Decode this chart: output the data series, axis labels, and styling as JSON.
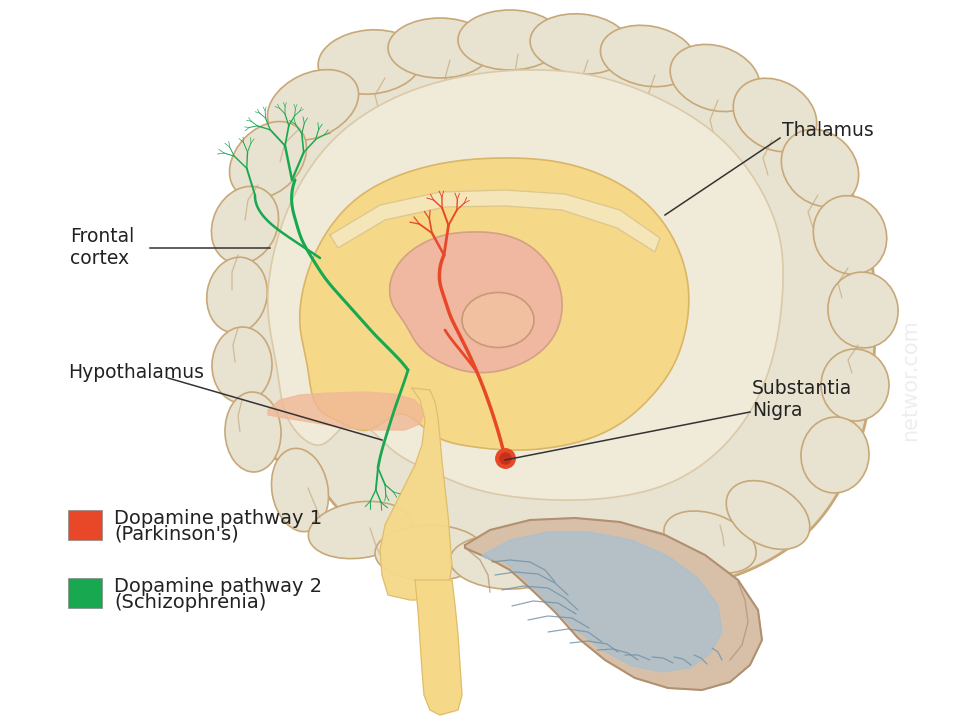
{
  "background_color": "#ffffff",
  "fig_width": 9.68,
  "fig_height": 7.26,
  "dpi": 100,
  "cortex_outer_color": "#e8e2d0",
  "cortex_stroke": "#c8a878",
  "cortex_inner_color": "#f0e8c8",
  "inner_yellow": "#f5d888",
  "midbrain_pink": "#f0b8a0",
  "midbrain_pink2": "#e8a090",
  "brainstem_color": "#f5d888",
  "cerebellum_outer": "#d8c8b0",
  "cerebellum_tan": "#c8a888",
  "cerebellum_blue": "#a8c0d0",
  "pons_color": "#f5d888",
  "pink_strip_color": "#f0b8a0",
  "pathway1_color": "#e84828",
  "pathway2_color": "#18a850",
  "label_frontal_cortex": "Frontal\ncortex",
  "label_thalamus": "Thalamus",
  "label_hypothalamus": "Hypothalamus",
  "label_substantia_nigra": "Substantia\nNigra",
  "legend_color1": "#e84828",
  "legend_color2": "#18a850",
  "legend_label1a": "Dopamine pathway 1",
  "legend_label1b": "(Parkinson's)",
  "legend_label2a": "Dopamine pathway 2",
  "legend_label2b": "(Schizophrenia)",
  "watermark_color": "#c8d0d8",
  "watermark_alpha": 0.35
}
